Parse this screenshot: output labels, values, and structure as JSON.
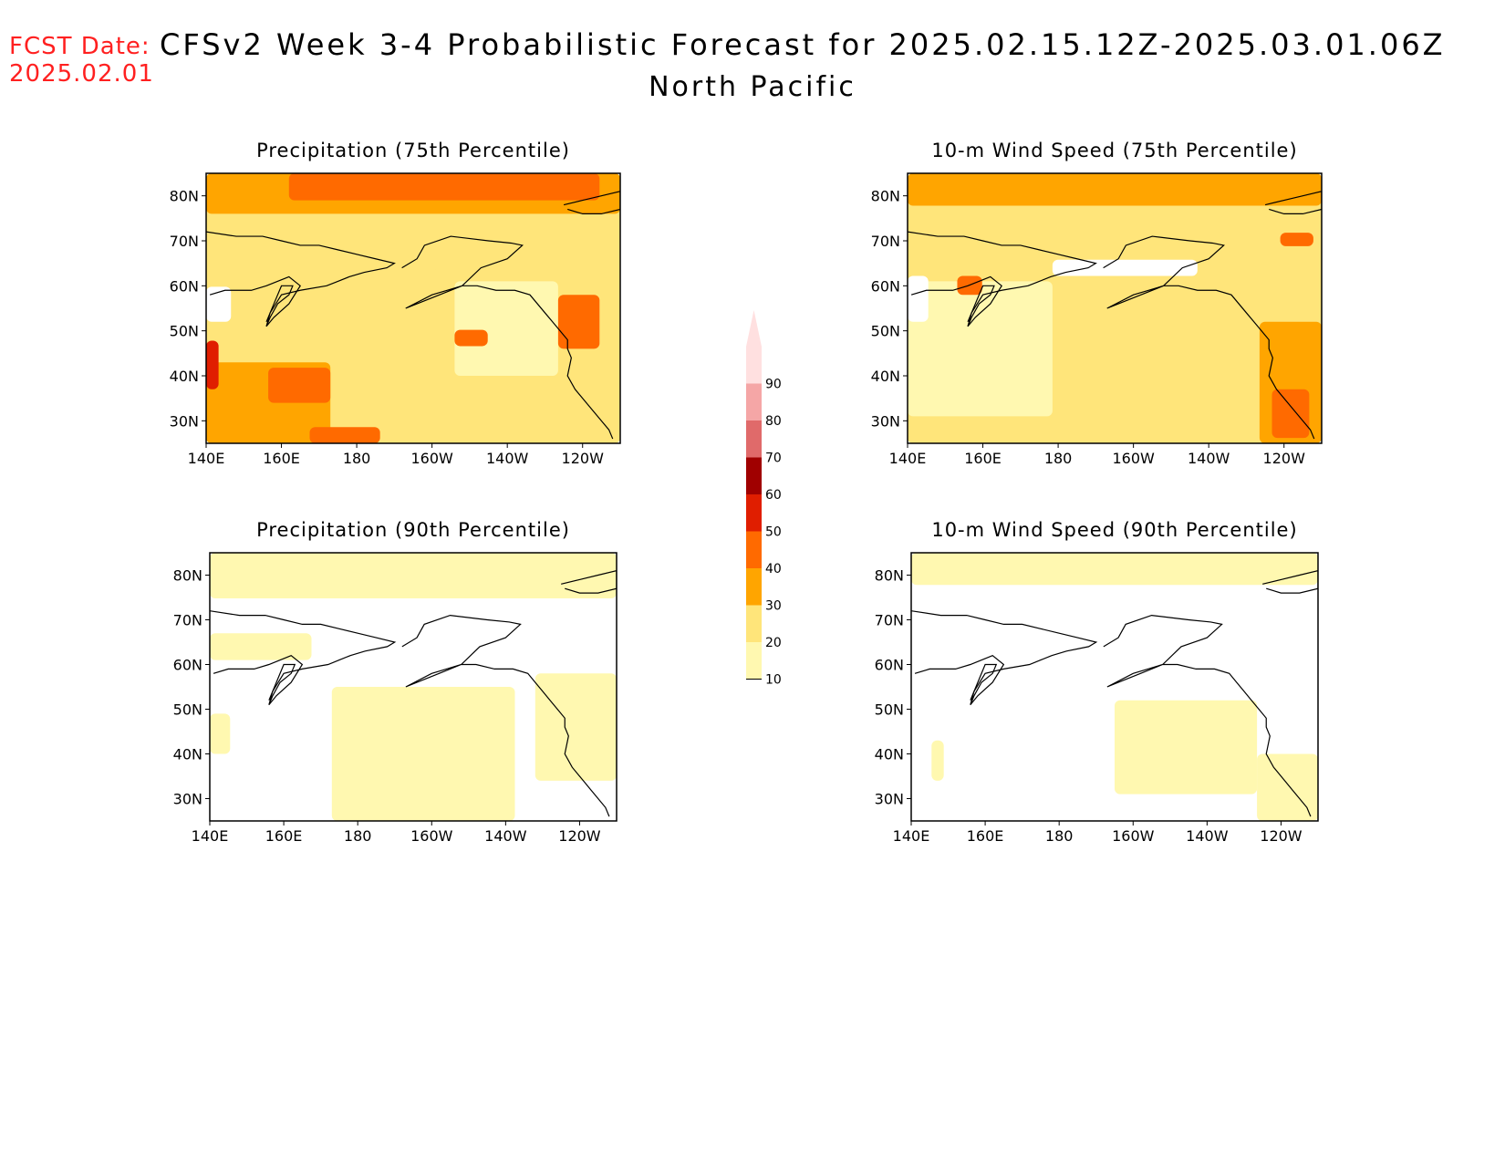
{
  "header": {
    "fcst_label": "FCST Date:",
    "fcst_date": "2025.02.01",
    "title": "CFSv2 Week 3-4 Probabilistic Forecast for 2025.02.15.12Z-2025.03.01.06Z",
    "region": "North Pacific"
  },
  "panels": [
    {
      "id": "precip-75",
      "title": "Precipitation (75th Percentile)"
    },
    {
      "id": "wind-75",
      "title": "10-m Wind Speed (75th Percentile)"
    },
    {
      "id": "precip-90",
      "title": "Precipitation (90th Percentile)"
    },
    {
      "id": "wind-90",
      "title": "10-m Wind Speed (90th Percentile)"
    }
  ],
  "axes": {
    "x_ticks": [
      "140E",
      "160E",
      "180",
      "160W",
      "140W",
      "120W"
    ],
    "y_ticks": [
      "80N",
      "70N",
      "60N",
      "50N",
      "40N",
      "30N"
    ]
  },
  "colorbar": {
    "levels": [
      "10",
      "20",
      "30",
      "40",
      "50",
      "60",
      "70",
      "80",
      "90"
    ],
    "colors": [
      "#fff8b0",
      "#ffe57a",
      "#ffa500",
      "#ff6a00",
      "#e01e00",
      "#a00000",
      "#e06a6a",
      "#f5a6a6",
      "#ffe0e0"
    ]
  }
}
